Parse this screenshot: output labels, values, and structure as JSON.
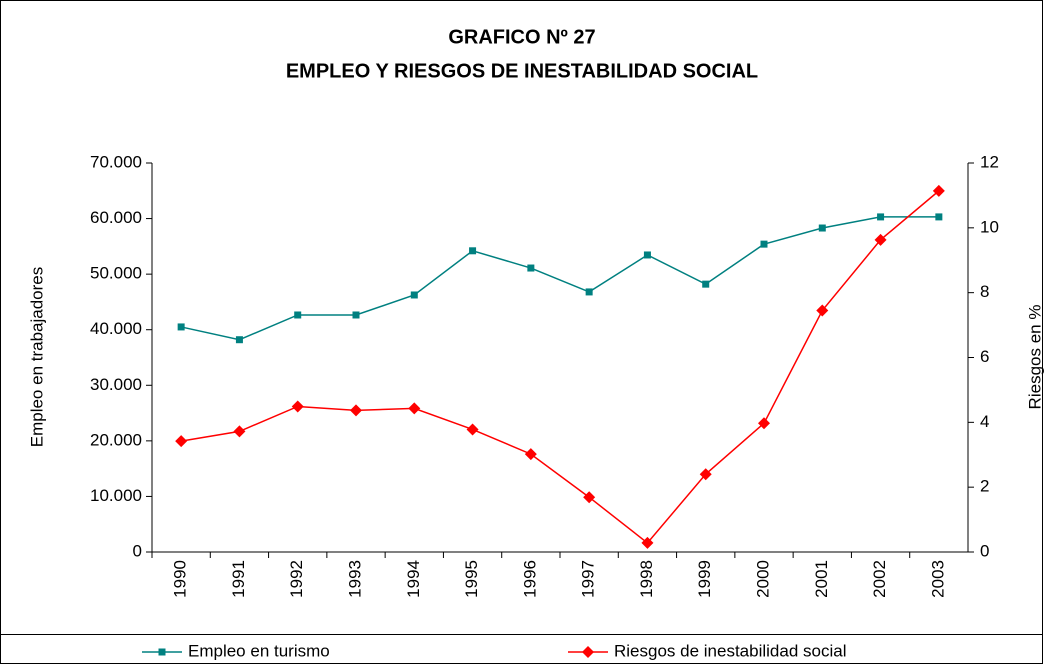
{
  "chart_data": {
    "type": "line",
    "title": "GRAFICO Nº 27",
    "subtitle": "EMPLEO Y RIESGOS DE INESTABILIDAD SOCIAL",
    "y_label": "Empleo en trabajadores",
    "y2_label": "Riesgos en %",
    "categories": [
      "1990",
      "1991",
      "1992",
      "1993",
      "1994",
      "1995",
      "1996",
      "1997",
      "1998",
      "1999",
      "2000",
      "2001",
      "2002",
      "2003"
    ],
    "series": [
      {
        "name": "Empleo en turismo",
        "color": "#008080",
        "marker": "square",
        "values": [
          40500,
          38200,
          42650,
          42650,
          46250,
          54200,
          51100,
          46800,
          53450,
          48200,
          55400,
          58300,
          60300,
          60300
        ]
      },
      {
        "name": "Riesgos de inestabilidad social",
        "color": "#ff0000",
        "marker": "diamond",
        "axis": "y2",
        "values": [
          3.42,
          3.72,
          4.49,
          4.37,
          4.43,
          3.78,
          3.02,
          1.69,
          0.28,
          2.4,
          3.97,
          7.45,
          9.63,
          11.14
        ]
      }
    ],
    "ylim": [
      0,
      70000
    ],
    "yticks": [
      {
        "value": 0,
        "label": "0"
      },
      {
        "value": 10000,
        "label": "10.000"
      },
      {
        "value": 20000,
        "label": "20.000"
      },
      {
        "value": 30000,
        "label": "30.000"
      },
      {
        "value": 40000,
        "label": "40.000"
      },
      {
        "value": 50000,
        "label": "50.000"
      },
      {
        "value": 60000,
        "label": "60.000"
      },
      {
        "value": 70000,
        "label": "70.000"
      }
    ],
    "y2lim": [
      0,
      12
    ],
    "y2ticks": [
      0,
      2,
      4,
      6,
      8,
      10,
      12
    ],
    "legend": "bottom"
  }
}
